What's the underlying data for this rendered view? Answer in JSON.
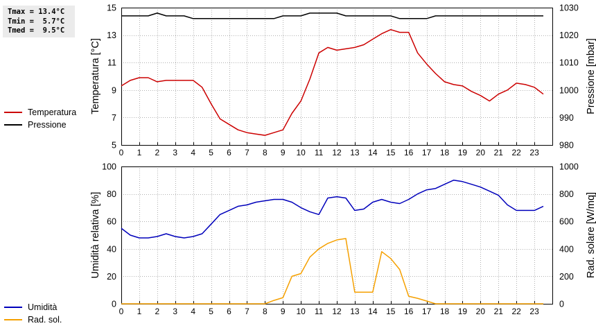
{
  "stats": [
    "Tmax = 13.4°C",
    "Tmin =  5.7°C",
    "Tmed =  9.5°C"
  ],
  "chart_data": [
    {
      "type": "line",
      "ylabel": "Temperatura [°C]",
      "y2label": "Pressione [mbar]",
      "xlim": [
        0,
        24
      ],
      "ylim": [
        5,
        15
      ],
      "y2lim": [
        980,
        1030
      ],
      "xticks": [
        "0",
        "1",
        "2",
        "3",
        "4",
        "5",
        "6",
        "7",
        "8",
        "9",
        "10",
        "11",
        "12",
        "13",
        "14",
        "15",
        "16",
        "17",
        "18",
        "19",
        "20",
        "21",
        "22",
        "23"
      ],
      "yticks": [
        "5",
        "7",
        "9",
        "11",
        "13",
        "15"
      ],
      "y2ticks": [
        "980",
        "990",
        "1000",
        "1010",
        "1020",
        "1030"
      ],
      "grid": true,
      "legend_position": "left",
      "series": [
        {
          "name": "Temperatura",
          "color": "#cc0000",
          "axis": "left",
          "x": [
            0,
            0.5,
            1,
            1.5,
            2,
            2.5,
            3,
            3.5,
            4,
            4.5,
            5,
            5.5,
            6,
            6.5,
            7,
            7.5,
            8,
            8.5,
            9,
            9.5,
            10,
            10.5,
            11,
            11.5,
            12,
            12.5,
            13,
            13.5,
            14,
            14.5,
            15,
            15.5,
            16,
            16.5,
            17,
            17.5,
            18,
            18.5,
            19,
            19.5,
            20,
            20.5,
            21,
            21.5,
            22,
            22.5,
            23,
            23.5
          ],
          "y": [
            9.3,
            9.7,
            9.9,
            9.9,
            9.6,
            9.7,
            9.7,
            9.7,
            9.7,
            9.2,
            8.0,
            6.9,
            6.5,
            6.1,
            5.9,
            5.8,
            5.7,
            5.9,
            6.1,
            7.3,
            8.2,
            9.8,
            11.7,
            12.1,
            11.9,
            12.0,
            12.1,
            12.3,
            12.7,
            13.1,
            13.4,
            13.2,
            13.2,
            11.7,
            10.9,
            10.2,
            9.6,
            9.4,
            9.3,
            8.9,
            8.6,
            8.2,
            8.7,
            9.0,
            9.5,
            9.4,
            9.2,
            8.7
          ]
        },
        {
          "name": "Pressione",
          "color": "#000000",
          "axis": "right",
          "x": [
            0,
            0.5,
            1,
            1.5,
            2,
            2.5,
            3,
            3.5,
            4,
            4.5,
            5,
            5.5,
            6,
            6.5,
            7,
            7.5,
            8,
            8.5,
            9,
            9.5,
            10,
            10.5,
            11,
            11.5,
            12,
            12.5,
            13,
            13.5,
            14,
            14.5,
            15,
            15.5,
            16,
            16.5,
            17,
            17.5,
            18,
            18.5,
            19,
            19.5,
            20,
            20.5,
            21,
            21.5,
            22,
            22.5,
            23,
            23.5
          ],
          "y": [
            1027,
            1027,
            1027,
            1027,
            1028,
            1027,
            1027,
            1027,
            1026,
            1026,
            1026,
            1026,
            1026,
            1026,
            1026,
            1026,
            1026,
            1026,
            1027,
            1027,
            1027,
            1028,
            1028,
            1028,
            1028,
            1027,
            1027,
            1027,
            1027,
            1027,
            1027,
            1026,
            1026,
            1026,
            1026,
            1027,
            1027,
            1027,
            1027,
            1027,
            1027,
            1027,
            1027,
            1027,
            1027,
            1027,
            1027,
            1027
          ]
        }
      ]
    },
    {
      "type": "line",
      "ylabel": "Umidità relativa [%]",
      "y2label": "Rad. solare [W/mq]",
      "xlim": [
        0,
        24
      ],
      "ylim": [
        0,
        100
      ],
      "y2lim": [
        0,
        1000
      ],
      "xticks": [
        "0",
        "1",
        "2",
        "3",
        "4",
        "5",
        "6",
        "7",
        "8",
        "9",
        "10",
        "11",
        "12",
        "13",
        "14",
        "15",
        "16",
        "17",
        "18",
        "19",
        "20",
        "21",
        "22",
        "23"
      ],
      "yticks": [
        "0",
        "20",
        "40",
        "60",
        "80",
        "100"
      ],
      "y2ticks": [
        "0",
        "200",
        "400",
        "600",
        "800",
        "1000"
      ],
      "grid": true,
      "legend_position": "left",
      "series": [
        {
          "name": "Umidità",
          "color": "#0000bb",
          "axis": "left",
          "x": [
            0,
            0.5,
            1,
            1.5,
            2,
            2.5,
            3,
            3.5,
            4,
            4.5,
            5,
            5.5,
            6,
            6.5,
            7,
            7.5,
            8,
            8.5,
            9,
            9.5,
            10,
            10.5,
            11,
            11.5,
            12,
            12.5,
            13,
            13.5,
            14,
            14.5,
            15,
            15.5,
            16,
            16.5,
            17,
            17.5,
            18,
            18.5,
            19,
            19.5,
            20,
            20.5,
            21,
            21.5,
            22,
            22.5,
            23,
            23.5
          ],
          "y": [
            55,
            50,
            48,
            48,
            49,
            51,
            49,
            48,
            49,
            51,
            58,
            65,
            68,
            71,
            72,
            74,
            75,
            76,
            76,
            74,
            70,
            67,
            65,
            77,
            78,
            77,
            68,
            69,
            74,
            76,
            74,
            73,
            76,
            80,
            83,
            84,
            87,
            90,
            89,
            87,
            85,
            82,
            79,
            72,
            68,
            68,
            68,
            71
          ]
        },
        {
          "name": "Rad. sol.",
          "color": "#f5a000",
          "axis": "right",
          "x": [
            0,
            0.5,
            1,
            1.5,
            2,
            2.5,
            3,
            3.5,
            4,
            4.5,
            5,
            5.5,
            6,
            6.5,
            7,
            7.5,
            8,
            8.5,
            9,
            9.5,
            10,
            10.5,
            11,
            11.5,
            12,
            12.5,
            13,
            13.5,
            14,
            14.5,
            15,
            15.5,
            16,
            16.5,
            17,
            17.5,
            18,
            18.5,
            19,
            19.5,
            20,
            20.5,
            21,
            21.5,
            22,
            22.5,
            23,
            23.5
          ],
          "y": [
            0,
            0,
            0,
            0,
            0,
            0,
            0,
            0,
            0,
            0,
            0,
            0,
            0,
            0,
            0,
            0,
            0,
            25,
            45,
            200,
            220,
            340,
            400,
            440,
            465,
            475,
            85,
            85,
            85,
            380,
            330,
            250,
            55,
            40,
            20,
            0,
            0,
            0,
            0,
            0,
            0,
            0,
            0,
            0,
            0,
            0,
            0,
            0
          ]
        }
      ]
    }
  ]
}
